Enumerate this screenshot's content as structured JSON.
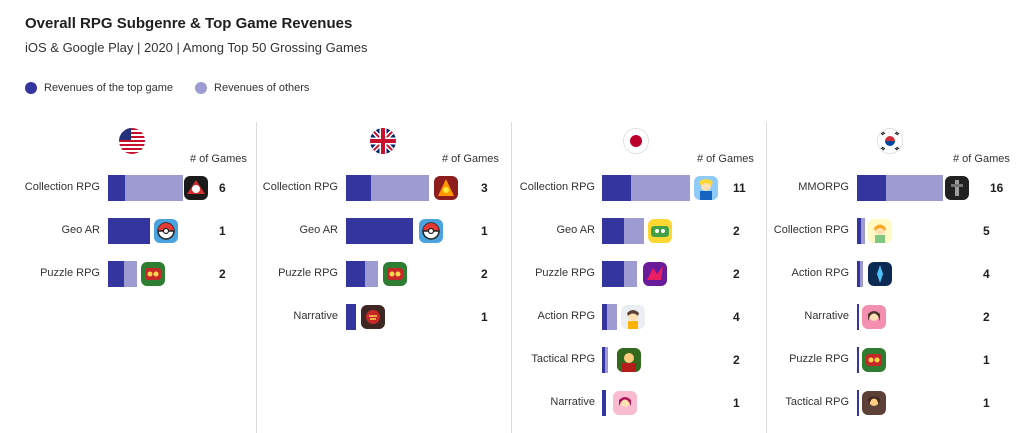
{
  "header": {
    "title": "Overall RPG Subgenre & Top Game Revenues",
    "subtitle": "iOS & Google Play | 2020 | Among Top 50 Grossing Games"
  },
  "legend": {
    "top_label": "Revenues of the top game",
    "others_label": "Revenues of others"
  },
  "colors": {
    "top": "#3535a0",
    "others": "#9e9ad2"
  },
  "chart_data": [
    {
      "type": "bar",
      "country": "US",
      "count_header": "# of Games",
      "categories": [
        "Collection RPG",
        "Geo AR",
        "Puzzle RPG"
      ],
      "series": [
        {
          "name": "Revenues of the top game",
          "values": [
            17,
            42,
            16
          ]
        },
        {
          "name": "Revenues of others",
          "values": [
            58,
            0,
            13
          ]
        }
      ],
      "games": [
        6,
        1,
        2
      ],
      "icons": [
        "marvel-game-icon",
        "pokemon-go-icon",
        "puzzle-game-icon"
      ],
      "ylim": [
        0,
        100
      ]
    },
    {
      "type": "bar",
      "country": "UK",
      "count_header": "# of Games",
      "categories": [
        "Collection RPG",
        "Geo AR",
        "Puzzle RPG",
        "Narrative"
      ],
      "series": [
        {
          "name": "Revenues of the top game",
          "values": [
            25,
            67,
            19,
            10
          ]
        },
        {
          "name": "Revenues of others",
          "values": [
            58,
            0,
            13,
            0
          ]
        }
      ],
      "games": [
        3,
        1,
        2,
        1
      ],
      "icons": [
        "collection-game-icon",
        "pokemon-go-icon",
        "puzzle-game-icon",
        "harry-potter-icon"
      ],
      "ylim": [
        0,
        100
      ]
    },
    {
      "type": "bar",
      "country": "Japan",
      "count_header": "# of Games",
      "categories": [
        "Collection RPG",
        "Geo AR",
        "Puzzle RPG",
        "Action RPG",
        "Tactical RPG",
        "Narrative"
      ],
      "series": [
        {
          "name": "Revenues of the top game",
          "values": [
            29,
            22,
            22,
            5,
            3,
            4
          ]
        },
        {
          "name": "Revenues of others",
          "values": [
            59,
            20,
            13,
            10,
            3,
            0
          ]
        }
      ],
      "games": [
        11,
        2,
        2,
        4,
        2,
        1
      ],
      "icons": [
        "fate-grand-order-icon",
        "geo-game-icon",
        "puzzle-dragons-icon",
        "genshin-icon",
        "tactical-game-icon",
        "narrative-game-icon"
      ],
      "ylim": [
        0,
        100
      ]
    },
    {
      "type": "bar",
      "country": "South Korea",
      "count_header": "# of Games",
      "categories": [
        "MMORPG",
        "Collection RPG",
        "Action RPG",
        "Narrative",
        "Puzzle RPG",
        "Tactical RPG"
      ],
      "series": [
        {
          "name": "Revenues of the top game",
          "values": [
            29,
            4,
            3,
            2,
            2,
            2
          ]
        },
        {
          "name": "Revenues of others",
          "values": [
            57,
            4,
            3,
            0,
            0,
            0
          ]
        }
      ],
      "games": [
        16,
        5,
        4,
        2,
        1,
        1
      ],
      "icons": [
        "lineage-icon",
        "collection-game-icon",
        "action-game-icon",
        "narrative-game-icon",
        "puzzle-game-icon",
        "tactical-game-icon"
      ],
      "ylim": [
        0,
        100
      ]
    }
  ]
}
